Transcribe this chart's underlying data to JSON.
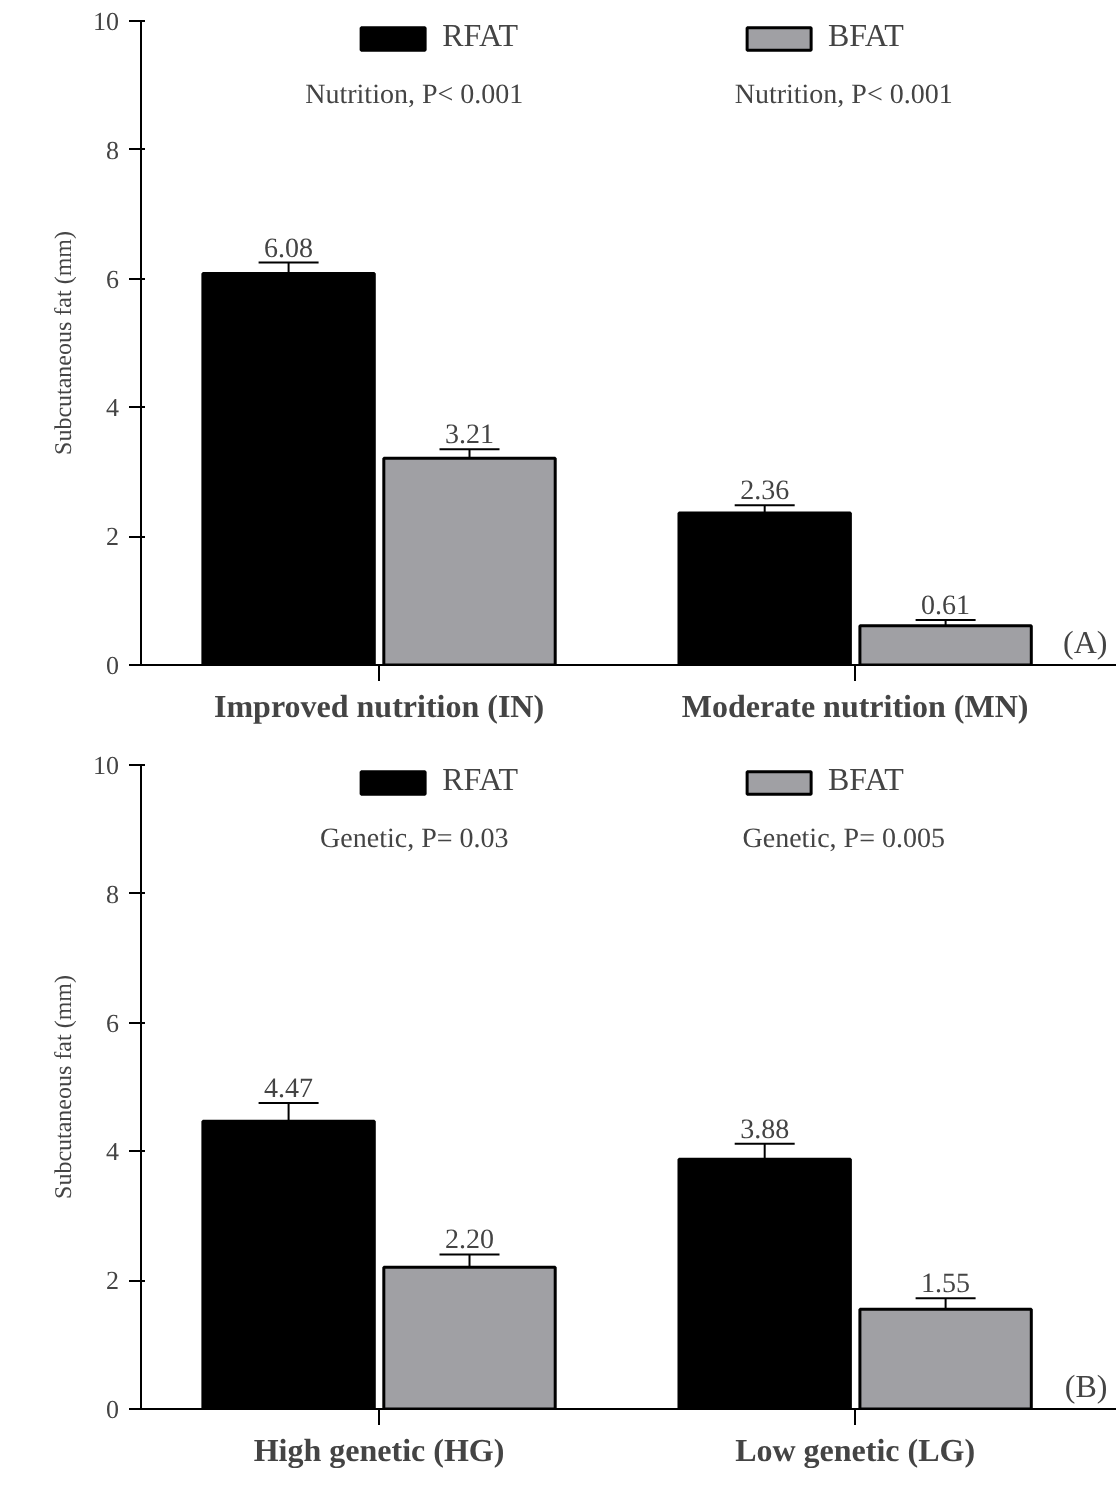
{
  "chart_data": [
    {
      "type": "bar",
      "categories": [
        "Improved nutrition (IN)",
        "Moderate nutrition (MN)"
      ],
      "ylabel": "Subcutaneous fat (mm)",
      "ylim": [
        0,
        10
      ],
      "yticks": [
        0,
        2,
        4,
        6,
        8,
        10
      ],
      "legend": "top",
      "grid": false,
      "series": [
        {
          "name": "RFAT",
          "color": "#000000",
          "values": [
            6.08,
            2.36
          ],
          "errors": [
            0.17,
            0.12
          ],
          "value_labels": [
            "6.08",
            "2.36"
          ]
        },
        {
          "name": "BFAT",
          "color": "#a0a0a4",
          "values": [
            3.21,
            0.61
          ],
          "errors": [
            0.14,
            0.09
          ],
          "value_labels": [
            "3.21",
            "0.61"
          ]
        }
      ],
      "annotations": [
        "Nutrition, P< 0.001",
        "Nutrition, P< 0.001",
        "(A)"
      ]
    },
    {
      "type": "bar",
      "categories": [
        "High genetic (HG)",
        "Low genetic (LG)"
      ],
      "ylabel": "Subcutaneous fat (mm)",
      "ylim": [
        0,
        10
      ],
      "yticks": [
        0,
        2,
        4,
        6,
        8,
        10
      ],
      "legend": "top",
      "grid": false,
      "series": [
        {
          "name": "RFAT",
          "color": "#000000",
          "values": [
            4.47,
            3.88
          ],
          "errors": [
            0.28,
            0.24
          ],
          "value_labels": [
            "4.47",
            "3.88"
          ]
        },
        {
          "name": "BFAT",
          "color": "#a0a0a4",
          "values": [
            2.2,
            1.55
          ],
          "errors": [
            0.2,
            0.17
          ],
          "value_labels": [
            "2.20",
            "1.55"
          ]
        }
      ],
      "annotations": [
        "Genetic, P= 0.03",
        "Genetic, P= 0.005",
        "(B)"
      ]
    }
  ]
}
